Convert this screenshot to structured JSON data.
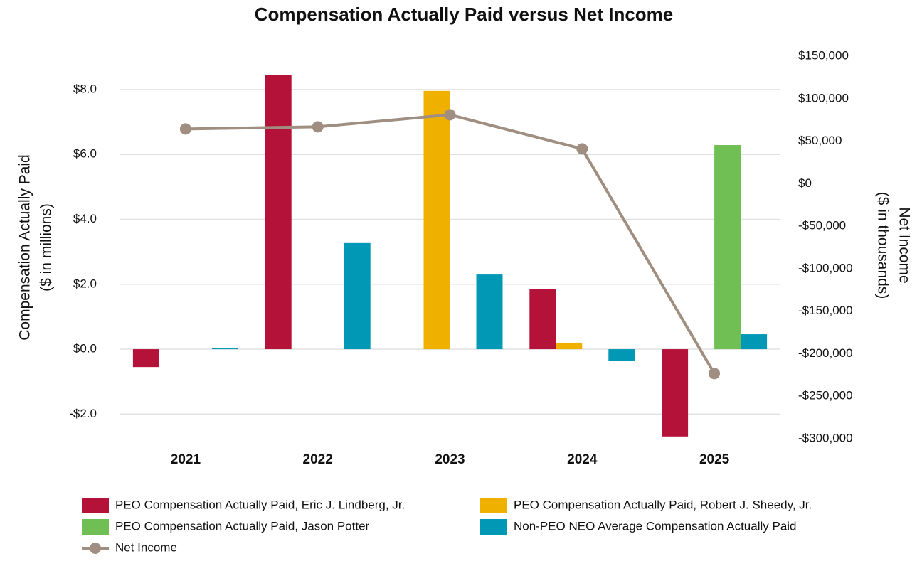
{
  "chart_data": {
    "type": "bar-line",
    "title": "Compensation Actually Paid versus Net Income",
    "y_label": [
      "Compensation Actually Paid",
      "($ in millions)"
    ],
    "y2_label": [
      "Net Income",
      "($ in thousands)"
    ],
    "categories": [
      "2021",
      "2022",
      "2023",
      "2024",
      "2025"
    ],
    "series": [
      {
        "name": "PEO Compensation Actually Paid, Eric J. Lindberg, Jr.",
        "color": "#b5123a",
        "type": "bar",
        "values": [
          -0.55,
          8.44,
          null,
          1.86,
          -2.69
        ]
      },
      {
        "name": "PEO Compensation Actually Paid, Robert J. Sheedy, Jr.",
        "color": "#f0b000",
        "type": "bar",
        "values": [
          null,
          null,
          7.96,
          0.2,
          null
        ]
      },
      {
        "name": "PEO Compensation Actually Paid, Jason Potter",
        "color": "#70bf54",
        "type": "bar",
        "values": [
          null,
          null,
          null,
          null,
          6.29
        ]
      },
      {
        "name": "Non-PEO NEO Average Compensation Actually Paid",
        "color": "#0098b5",
        "type": "bar",
        "values": [
          0.04,
          3.27,
          2.3,
          -0.36,
          0.46
        ]
      },
      {
        "name": "Net Income",
        "color": "#a08f80",
        "type": "line",
        "axis": "y2",
        "values": [
          64400,
          66900,
          81100,
          41000,
          -223300
        ]
      }
    ],
    "ylim": [
      -2.76,
      9.03
    ],
    "yticks": [
      {
        "value": -2,
        "label": "-$2.0"
      },
      {
        "value": 0,
        "label": "$0.0"
      },
      {
        "value": 2,
        "label": "$2.0"
      },
      {
        "value": 4,
        "label": "$4.0"
      },
      {
        "value": 6,
        "label": "$6.0"
      },
      {
        "value": 8,
        "label": "$8.0"
      }
    ],
    "y2lim": [
      -300000,
      150000
    ],
    "y2ticks": [
      {
        "value": -300000,
        "label": "-$300,000"
      },
      {
        "value": -250000,
        "label": "-$250,000"
      },
      {
        "value": -200000,
        "label": "-$200,000"
      },
      {
        "value": -150000,
        "label": "-$150,000"
      },
      {
        "value": -100000,
        "label": "-$100,000"
      },
      {
        "value": -50000,
        "label": "-$50,000"
      },
      {
        "value": 0,
        "label": "$0"
      },
      {
        "value": 50000,
        "label": "$50,000"
      },
      {
        "value": 100000,
        "label": "$100,000"
      },
      {
        "value": 150000,
        "label": "$150,000"
      }
    ],
    "grid": true,
    "legend": "bottom"
  }
}
